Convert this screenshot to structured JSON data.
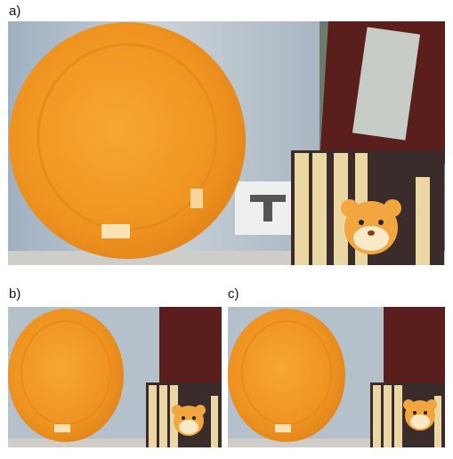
{
  "panels": [
    {
      "label": "a)"
    },
    {
      "label": "b)"
    },
    {
      "label": "c)"
    }
  ],
  "colors": {
    "plate": "#f29a2a",
    "plate_rim": "#e88a1c",
    "bag": "#b9c3cc",
    "wall": "#8b9296",
    "shelf": "#c9c7c2",
    "holder_wood": "#e9d4a0",
    "holder_dark": "#3a2c2a",
    "tiger": "#f2a640"
  },
  "scene_objects": [
    "orange-plate",
    "plastic-bag",
    "book-shelf",
    "pencil-holder",
    "tiger-face-decoration"
  ]
}
